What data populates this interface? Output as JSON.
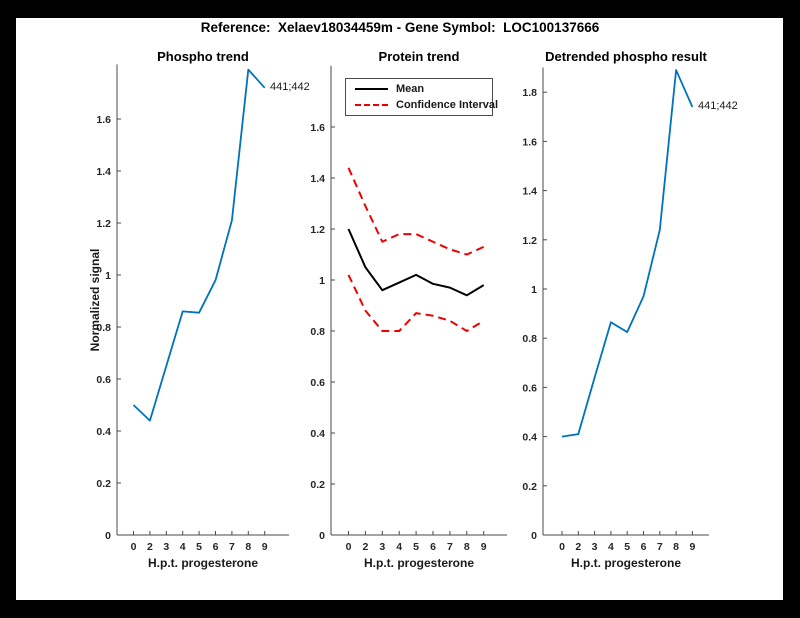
{
  "figure": {
    "title": "Reference:  Xelaev18034459m - Gene Symbol:  LOC100137666",
    "background_color": "#000000",
    "canvas_color": "#ffffff"
  },
  "colors": {
    "line_blue": "#0072BD",
    "line_black": "#000000",
    "line_red": "#ee0000",
    "axis_text": "#262626"
  },
  "chart_data": [
    {
      "type": "line",
      "title": "Phospho trend",
      "xlabel": "H.p.t. progesterone",
      "ylabel": "Normalized signal",
      "categories": [
        "0",
        "2",
        "3",
        "4",
        "5",
        "6",
        "7",
        "8",
        "9"
      ],
      "yticks": [
        "0",
        "0.2",
        "0.4",
        "0.6",
        "0.8",
        "1",
        "1.2",
        "1.4",
        "1.6"
      ],
      "ylim": [
        0,
        1.81
      ],
      "grid": false,
      "series": [
        {
          "id": "phospho-line",
          "name": "Phospho trend",
          "color": "#0072BD",
          "style": "solid",
          "values": [
            0.5,
            0.44,
            0.65,
            0.86,
            0.855,
            0.98,
            1.21,
            1.79,
            1.72
          ]
        }
      ],
      "annotation": {
        "text": "441;442",
        "x": "9",
        "y": 1.72
      }
    },
    {
      "type": "line",
      "title": "Protein trend",
      "xlabel": "H.p.t. progesterone",
      "ylabel": "",
      "categories": [
        "0",
        "2",
        "3",
        "4",
        "5",
        "6",
        "7",
        "8",
        "9"
      ],
      "yticks": [
        "0",
        "0.2",
        "0.4",
        "0.6",
        "0.8",
        "1",
        "1.2",
        "1.4",
        "1.6"
      ],
      "ylim": [
        0,
        1.84
      ],
      "grid": false,
      "legend_position": "top-left",
      "legend_entries": [
        {
          "label": "Mean",
          "style": "solid",
          "color": "#000000"
        },
        {
          "label": "Confidence Interval",
          "style": "dashed",
          "color": "#ee0000"
        }
      ],
      "series": [
        {
          "id": "ci-upper-line",
          "name": "Confidence Interval (upper)",
          "color": "#ee0000",
          "style": "dashed",
          "values": [
            1.44,
            1.29,
            1.15,
            1.18,
            1.18,
            1.15,
            1.12,
            1.1,
            1.13
          ]
        },
        {
          "id": "ci-lower-line",
          "name": "Confidence Interval (lower)",
          "color": "#ee0000",
          "style": "dashed",
          "values": [
            1.02,
            0.88,
            0.8,
            0.8,
            0.87,
            0.86,
            0.84,
            0.8,
            0.84
          ]
        },
        {
          "id": "mean-line",
          "name": "Mean",
          "color": "#000000",
          "style": "solid",
          "values": [
            1.2,
            1.05,
            0.96,
            0.99,
            1.02,
            0.985,
            0.97,
            0.94,
            0.98
          ]
        }
      ]
    },
    {
      "type": "line",
      "title": "Detrended phospho result",
      "xlabel": "H.p.t. progesterone",
      "ylabel": "",
      "categories": [
        "0",
        "2",
        "3",
        "4",
        "5",
        "6",
        "7",
        "8",
        "9"
      ],
      "yticks": [
        "0",
        "0.2",
        "0.4",
        "0.6",
        "0.8",
        "1",
        "1.2",
        "1.4",
        "1.6",
        "1.8"
      ],
      "ylim": [
        0,
        1.9
      ],
      "grid": false,
      "series": [
        {
          "id": "detrended-line",
          "name": "Detrended phospho",
          "color": "#0072BD",
          "style": "solid",
          "values": [
            0.4,
            0.41,
            0.64,
            0.865,
            0.825,
            0.97,
            1.24,
            1.89,
            1.74
          ]
        }
      ],
      "annotation": {
        "text": "441;442",
        "x": "9",
        "y": 1.74
      }
    }
  ]
}
